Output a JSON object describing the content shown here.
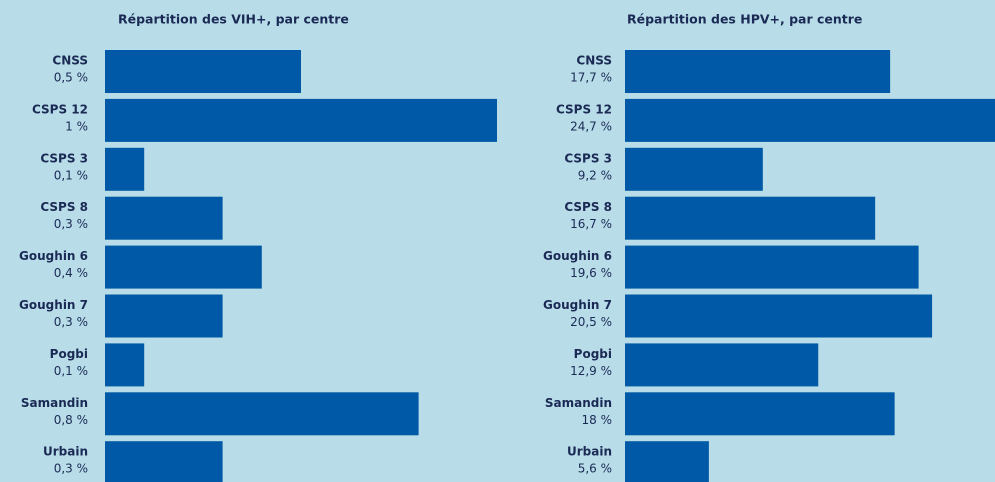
{
  "chart_data": [
    {
      "type": "bar",
      "orientation": "horizontal",
      "title": "Répartition des VIH+, par centre",
      "categories": [
        "CNSS",
        "CSPS 12",
        "CSPS 3",
        "CSPS 8",
        "Goughin 6",
        "Goughin 7",
        "Pogbi",
        "Samandin",
        "Urbain"
      ],
      "values": [
        0.5,
        1,
        0.1,
        0.3,
        0.4,
        0.3,
        0.1,
        0.8,
        0.3
      ],
      "value_labels": [
        "0,5 %",
        "1 %",
        "0,1 %",
        "0,3 %",
        "0,4 %",
        "0,3 %",
        "0,1 %",
        "0,8 %",
        "0,3 %"
      ],
      "color": "#0059a6",
      "xlim": [
        0,
        1
      ]
    },
    {
      "type": "bar",
      "orientation": "horizontal",
      "title": "Répartition des HPV+, par centre",
      "categories": [
        "CNSS",
        "CSPS 12",
        "CSPS 3",
        "CSPS 8",
        "Goughin 6",
        "Goughin 7",
        "Pogbi",
        "Samandin",
        "Urbain"
      ],
      "values": [
        17.7,
        24.7,
        9.2,
        16.7,
        19.6,
        20.5,
        12.9,
        18,
        5.6
      ],
      "value_labels": [
        "17,7 %",
        "24,7 %",
        "9,2 %",
        "16,7 %",
        "19,6 %",
        "20,5 %",
        "12,9 %",
        "18 %",
        "5,6 %"
      ],
      "color": "#0059a6",
      "xlim": [
        0,
        24.7
      ]
    }
  ]
}
